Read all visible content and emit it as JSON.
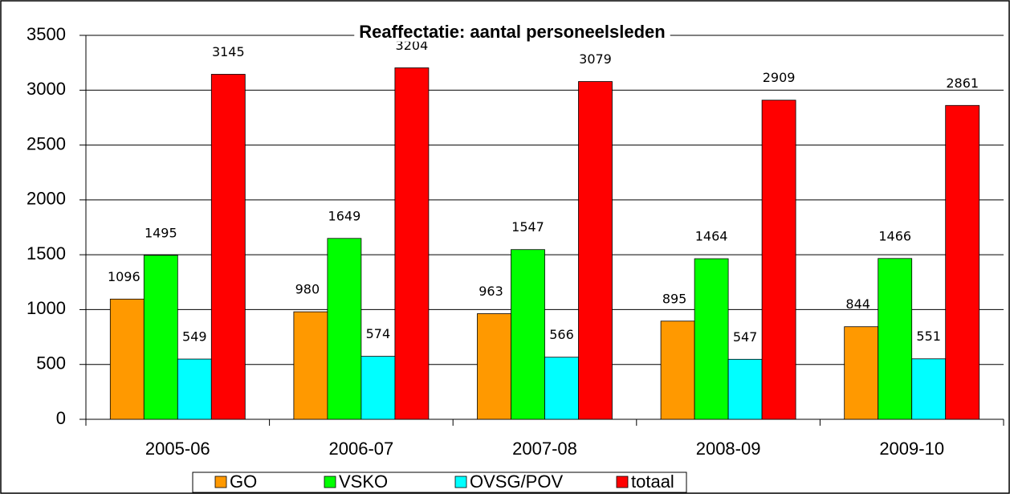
{
  "chart_data": {
    "type": "bar",
    "title": "Reaffectatie: aantal personeelsleden",
    "categories": [
      "2005-06",
      "2006-07",
      "2007-08",
      "2008-09",
      "2009-10"
    ],
    "series": [
      {
        "name": "GO",
        "color": "#ff9900",
        "values": [
          1096,
          980,
          963,
          895,
          844
        ]
      },
      {
        "name": "VSKO",
        "color": "#00ff00",
        "values": [
          1495,
          1649,
          1547,
          1464,
          1466
        ]
      },
      {
        "name": "OVSG/POV",
        "color": "#00ffff",
        "values": [
          549,
          574,
          566,
          547,
          551
        ]
      },
      {
        "name": "totaal",
        "color": "#ff0000",
        "values": [
          3145,
          3204,
          3079,
          2909,
          2861
        ]
      }
    ],
    "ylim": [
      0,
      3500
    ],
    "yticks": [
      0,
      500,
      1000,
      1500,
      2000,
      2500,
      3000,
      3500
    ],
    "grid": true,
    "legend": "bottom"
  }
}
